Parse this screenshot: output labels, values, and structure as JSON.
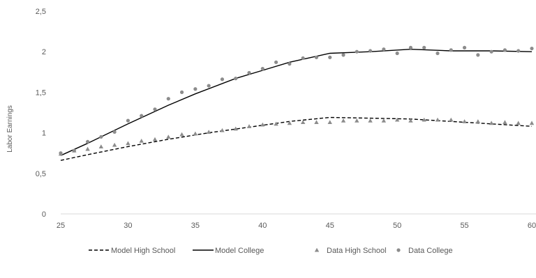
{
  "chart_data": {
    "type": "line",
    "title": "",
    "xlabel": "",
    "ylabel": "Labor Earnings",
    "xlim": [
      25,
      60
    ],
    "ylim": [
      0,
      2.5
    ],
    "x_ticks": [
      25,
      30,
      35,
      40,
      45,
      50,
      55,
      60
    ],
    "x_tick_labels": [
      "25",
      "30",
      "35",
      "40",
      "45",
      "50",
      "55",
      "60"
    ],
    "y_ticks": [
      0,
      0.5,
      1,
      1.5,
      2,
      2.5
    ],
    "y_tick_labels": [
      "0",
      "0,5",
      "1",
      "1,5",
      "2",
      "2,5"
    ],
    "grid": false,
    "legend_position": "bottom",
    "series": [
      {
        "name": "Model High School",
        "style": "dashed-line",
        "color": "#000000",
        "x": [
          25,
          27,
          30,
          33,
          36,
          39,
          42,
          45,
          48,
          51,
          54,
          57,
          60
        ],
        "y": [
          0.66,
          0.73,
          0.83,
          0.92,
          1.0,
          1.07,
          1.14,
          1.19,
          1.18,
          1.17,
          1.14,
          1.11,
          1.08
        ]
      },
      {
        "name": "Model College",
        "style": "solid-line",
        "color": "#000000",
        "x": [
          25,
          27,
          30,
          33,
          35,
          38,
          40,
          42,
          45,
          48,
          51,
          54,
          57,
          60
        ],
        "y": [
          0.72,
          0.87,
          1.11,
          1.34,
          1.48,
          1.67,
          1.77,
          1.87,
          1.98,
          2.0,
          2.03,
          2.01,
          2.01,
          2.0
        ]
      },
      {
        "name": "Data High School",
        "style": "triangle-marker",
        "color": "#8c8c8c",
        "x": [
          25,
          26,
          27,
          28,
          29,
          30,
          31,
          32,
          33,
          34,
          35,
          36,
          37,
          38,
          39,
          40,
          41,
          42,
          43,
          44,
          45,
          46,
          47,
          48,
          49,
          50,
          51,
          52,
          53,
          54,
          55,
          56,
          57,
          58,
          59,
          60
        ],
        "y": [
          0.74,
          0.78,
          0.8,
          0.83,
          0.85,
          0.87,
          0.9,
          0.92,
          0.95,
          0.98,
          0.99,
          1.01,
          1.03,
          1.05,
          1.08,
          1.1,
          1.11,
          1.12,
          1.13,
          1.13,
          1.13,
          1.15,
          1.15,
          1.15,
          1.15,
          1.16,
          1.15,
          1.16,
          1.16,
          1.16,
          1.14,
          1.14,
          1.12,
          1.13,
          1.12,
          1.12
        ]
      },
      {
        "name": "Data College",
        "style": "circle-marker",
        "color": "#8c8c8c",
        "x": [
          25,
          26,
          27,
          28,
          29,
          30,
          31,
          32,
          33,
          34,
          35,
          36,
          37,
          38,
          39,
          40,
          41,
          42,
          43,
          44,
          45,
          46,
          47,
          48,
          49,
          50,
          51,
          52,
          53,
          54,
          55,
          56,
          57,
          58,
          59,
          60
        ],
        "y": [
          0.75,
          0.78,
          0.89,
          0.95,
          1.01,
          1.15,
          1.21,
          1.29,
          1.42,
          1.5,
          1.54,
          1.58,
          1.66,
          1.67,
          1.74,
          1.79,
          1.87,
          1.85,
          1.92,
          1.93,
          1.93,
          1.96,
          2.0,
          2.01,
          2.03,
          1.98,
          2.05,
          2.05,
          1.98,
          2.02,
          2.05,
          1.96,
          2.0,
          2.02,
          2.01,
          2.04
        ]
      }
    ]
  }
}
